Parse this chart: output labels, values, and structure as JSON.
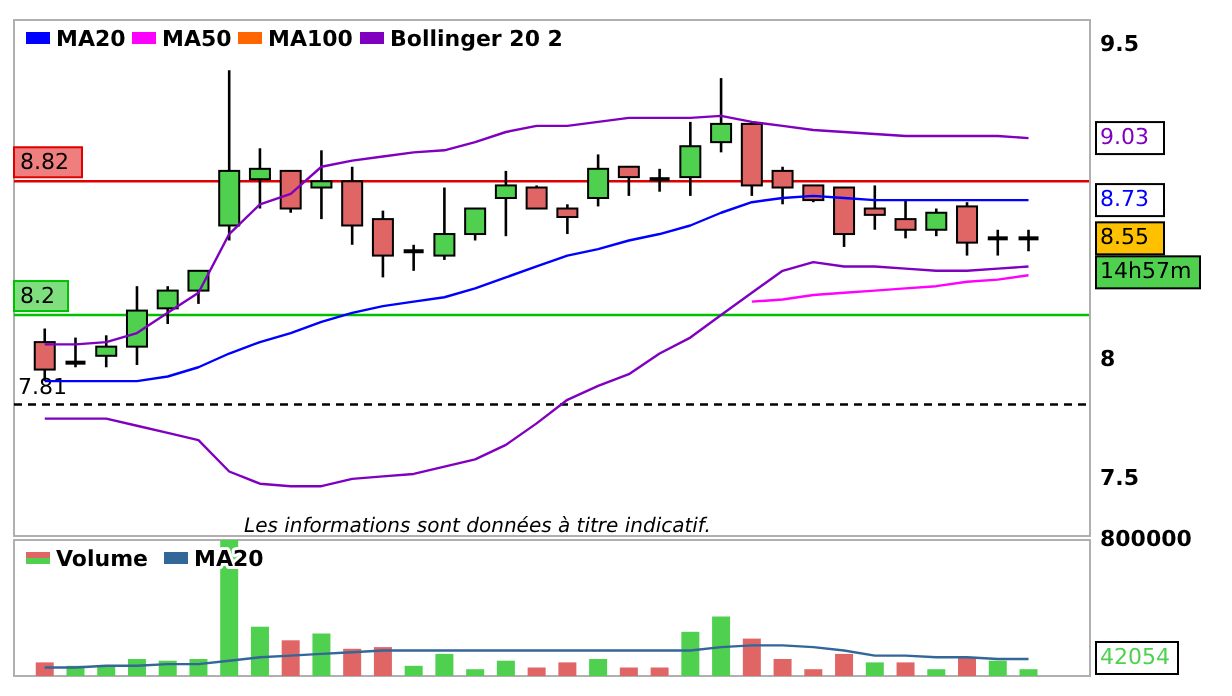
{
  "chart_data": [
    {
      "type": "candlestick",
      "categories": [
        null,
        null,
        null,
        null,
        null,
        null,
        null,
        null,
        null,
        null,
        null,
        null,
        null,
        null,
        null,
        null,
        null,
        null,
        null,
        null,
        null,
        null,
        null,
        null,
        null,
        null,
        null,
        null,
        null,
        null,
        null,
        null,
        null
      ],
      "ohlc": [
        [
          8.08,
          8.14,
          7.91,
          7.96
        ],
        [
          7.99,
          8.1,
          7.97,
          7.99
        ],
        [
          8.02,
          8.11,
          7.97,
          8.06
        ],
        [
          8.06,
          8.33,
          7.98,
          8.22
        ],
        [
          8.23,
          8.33,
          8.16,
          8.31
        ],
        [
          8.31,
          8.4,
          8.25,
          8.4
        ],
        [
          8.61,
          9.37,
          8.54,
          8.87
        ],
        [
          8.83,
          8.98,
          8.69,
          8.88
        ],
        [
          8.87,
          8.87,
          8.67,
          8.69
        ],
        [
          8.79,
          8.97,
          8.64,
          8.82
        ],
        [
          8.82,
          8.89,
          8.52,
          8.61
        ],
        [
          8.64,
          8.68,
          8.37,
          8.47
        ],
        [
          8.49,
          8.52,
          8.4,
          8.49
        ],
        [
          8.47,
          8.79,
          8.45,
          8.57
        ],
        [
          8.57,
          8.69,
          8.54,
          8.69
        ],
        [
          8.74,
          8.87,
          8.56,
          8.8
        ],
        [
          8.79,
          8.8,
          8.69,
          8.69
        ],
        [
          8.69,
          8.71,
          8.57,
          8.65
        ],
        [
          8.74,
          8.95,
          8.7,
          8.88
        ],
        [
          8.89,
          8.89,
          8.75,
          8.84
        ],
        [
          8.83,
          8.88,
          8.77,
          8.83
        ],
        [
          8.84,
          9.11,
          8.75,
          8.99
        ],
        [
          9.01,
          9.33,
          8.96,
          9.1
        ],
        [
          9.1,
          9.11,
          8.75,
          8.8
        ],
        [
          8.87,
          8.89,
          8.71,
          8.79
        ],
        [
          8.8,
          8.8,
          8.72,
          8.73
        ],
        [
          8.79,
          8.79,
          8.51,
          8.57
        ],
        [
          8.69,
          8.8,
          8.59,
          8.66
        ],
        [
          8.64,
          8.73,
          8.55,
          8.59
        ],
        [
          8.59,
          8.69,
          8.56,
          8.67
        ],
        [
          8.7,
          8.72,
          8.47,
          8.53
        ],
        [
          8.55,
          8.59,
          8.47,
          8.55
        ],
        [
          8.55,
          8.59,
          8.49,
          8.55
        ]
      ],
      "colors": [
        "#e06666",
        "#000000",
        "#4fd14f",
        "#4fd14f",
        "#4fd14f",
        "#4fd14f",
        "#4fd14f",
        "#4fd14f",
        "#e06666",
        "#4fd14f",
        "#e06666",
        "#e06666",
        "#000000",
        "#4fd14f",
        "#4fd14f",
        "#4fd14f",
        "#e06666",
        "#e06666",
        "#4fd14f",
        "#e06666",
        "#000000",
        "#4fd14f",
        "#4fd14f",
        "#e06666",
        "#e06666",
        "#e06666",
        "#e06666",
        "#e06666",
        "#e06666",
        "#4fd14f",
        "#e06666",
        "#000000",
        "#000000"
      ],
      "series": [
        {
          "name": "MA20",
          "type": "line",
          "color": "#0000ff",
          "values": [
            7.91,
            7.91,
            7.91,
            7.91,
            7.93,
            7.97,
            8.03,
            8.08,
            8.12,
            8.17,
            8.21,
            8.24,
            8.26,
            8.28,
            8.32,
            8.37,
            8.42,
            8.47,
            8.5,
            8.54,
            8.57,
            8.61,
            8.67,
            8.72,
            8.74,
            8.75,
            8.74,
            8.73,
            8.73,
            8.73,
            8.73,
            8.73,
            8.73
          ]
        },
        {
          "name": "MA50",
          "type": "line",
          "color": "#ff00ff",
          "values": [
            null,
            null,
            null,
            null,
            null,
            null,
            null,
            null,
            null,
            null,
            null,
            null,
            null,
            null,
            null,
            null,
            null,
            null,
            null,
            null,
            null,
            null,
            null,
            8.26,
            8.27,
            8.29,
            8.3,
            8.31,
            8.32,
            8.33,
            8.35,
            8.36,
            8.38
          ]
        },
        {
          "name": "MA100",
          "type": "line",
          "color": "#ff6600",
          "values": [
            null,
            null,
            null,
            null,
            null,
            null,
            null,
            null,
            null,
            null,
            null,
            null,
            null,
            null,
            null,
            null,
            null,
            null,
            null,
            null,
            null,
            null,
            null,
            null,
            null,
            null,
            null,
            null,
            null,
            null,
            null,
            null,
            null
          ]
        },
        {
          "name": "Bollinger 20 2",
          "type": "line",
          "color": "#8000c0",
          "values": [
            8.07,
            8.07,
            8.08,
            8.12,
            8.21,
            8.3,
            8.57,
            8.71,
            8.76,
            8.89,
            8.92,
            8.94,
            8.96,
            8.97,
            9.01,
            9.06,
            9.09,
            9.09,
            9.11,
            9.13,
            9.13,
            9.13,
            9.14,
            9.11,
            9.09,
            9.07,
            9.06,
            9.05,
            9.04,
            9.04,
            9.04,
            9.04,
            9.03
          ]
        },
        {
          "type": "line",
          "color": "#8000c0",
          "values": [
            7.75,
            7.75,
            7.75,
            7.72,
            7.69,
            7.66,
            7.53,
            7.48,
            7.47,
            7.47,
            7.5,
            7.51,
            7.52,
            7.55,
            7.58,
            7.64,
            7.73,
            7.83,
            7.89,
            7.94,
            8.03,
            8.1,
            8.2,
            8.3,
            8.4,
            8.44,
            8.42,
            8.42,
            8.41,
            8.4,
            8.4,
            8.41,
            8.42
          ]
        }
      ],
      "ref_lines": [
        {
          "axis": "y",
          "value": 8.82,
          "label": "8.82",
          "color": "#e00000",
          "line_style": "solid"
        },
        {
          "axis": "y",
          "value": 8.2,
          "label": "8.2",
          "color": "#00c000",
          "line_style": "solid"
        },
        {
          "axis": "y",
          "value": 7.81,
          "label": "7.81",
          "color": "#000000",
          "line_style": "dashed"
        }
      ],
      "annotations": [
        "9.03",
        "8.73",
        "8.55",
        "14h57m",
        "Les informations sont données à titre indicatif."
      ],
      "ylim": [
        7.27,
        9.63
      ],
      "yticks": [
        7.5,
        8,
        9.5
      ],
      "log": true,
      "legend": "top left"
    },
    {
      "type": "bar",
      "categories": [
        null,
        null,
        null,
        null,
        null,
        null,
        null,
        null,
        null,
        null,
        null,
        null,
        null,
        null,
        null,
        null,
        null,
        null,
        null,
        null,
        null,
        null,
        null,
        null,
        null,
        null,
        null,
        null,
        null,
        null,
        null,
        null,
        null
      ],
      "series": [
        {
          "name": "Volume",
          "colors": [
            "#e06666",
            "#4fd14f",
            "#4fd14f",
            "#4fd14f",
            "#4fd14f",
            "#4fd14f",
            "#4fd14f",
            "#4fd14f",
            "#e06666",
            "#4fd14f",
            "#e06666",
            "#e06666",
            "#4fd14f",
            "#4fd14f",
            "#4fd14f",
            "#4fd14f",
            "#e06666",
            "#e06666",
            "#4fd14f",
            "#e06666",
            "#e06666",
            "#4fd14f",
            "#4fd14f",
            "#e06666",
            "#e06666",
            "#e06666",
            "#e06666",
            "#4fd14f",
            "#e06666",
            "#4fd14f",
            "#e06666",
            "#4fd14f",
            "#4fd14f"
          ],
          "values": [
            80000,
            60000,
            60000,
            100000,
            90000,
            100000,
            800000,
            290000,
            210000,
            250000,
            160000,
            170000,
            60000,
            130000,
            40000,
            90000,
            50000,
            80000,
            100000,
            50000,
            50000,
            260000,
            350000,
            220000,
            100000,
            40000,
            130000,
            80000,
            80000,
            40000,
            110000,
            90000,
            40000
          ]
        },
        {
          "name": "MA20",
          "type": "line",
          "color": "#336699",
          "values": [
            50000,
            50000,
            60000,
            60000,
            70000,
            70000,
            90000,
            110000,
            120000,
            130000,
            140000,
            150000,
            150000,
            150000,
            150000,
            150000,
            150000,
            150000,
            150000,
            150000,
            150000,
            150000,
            170000,
            180000,
            180000,
            170000,
            150000,
            120000,
            120000,
            110000,
            110000,
            100000,
            100000
          ]
        }
      ],
      "annotations": [
        "42054"
      ],
      "ylim": [
        0,
        800000
      ],
      "yticks": [
        800000
      ],
      "legend": "top left"
    }
  ]
}
